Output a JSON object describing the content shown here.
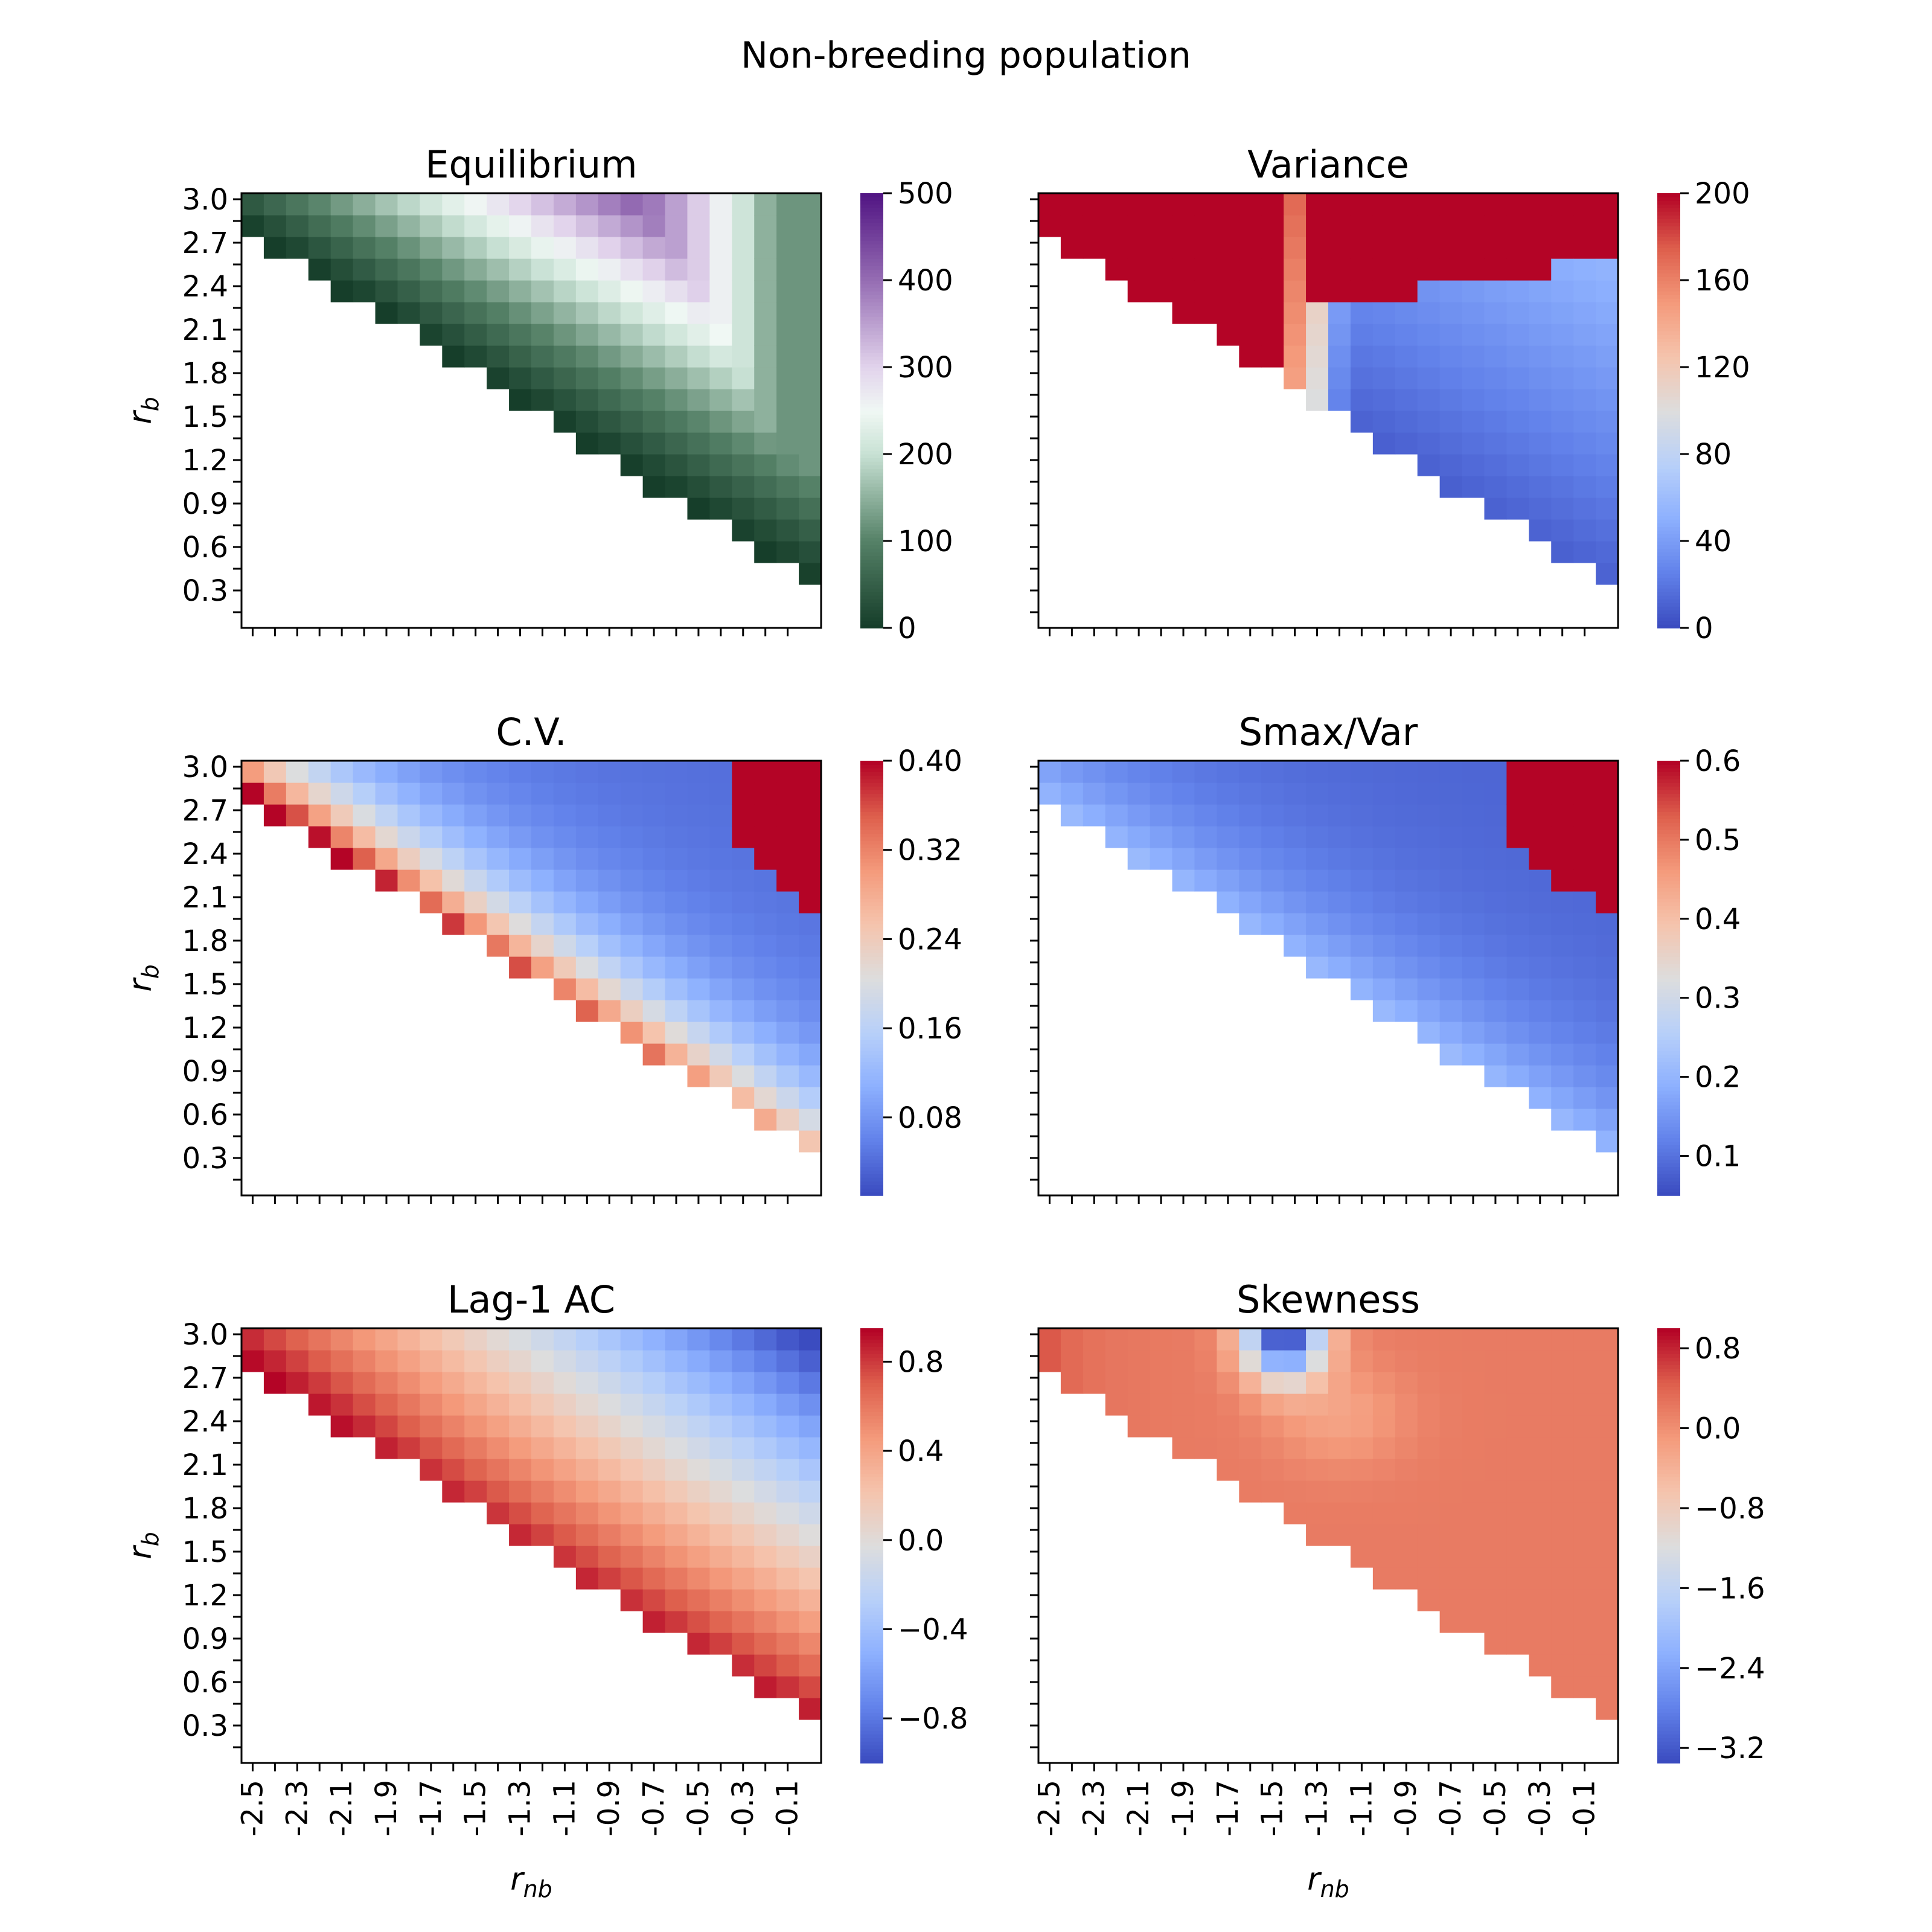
{
  "figure": {
    "title": "Non-breeding population",
    "xlabel_main": "r",
    "xlabel_sub": "nb",
    "ylabel_main": "r",
    "ylabel_sub": "b"
  },
  "chart_data": [
    {
      "type": "heatmap",
      "key": "equilibrium",
      "title": "Equilibrium",
      "colormap": "PRGn",
      "x_tick_labels": [
        "-2.5",
        "-2.3",
        "-2.1",
        "-1.9",
        "-1.7",
        "-1.5",
        "-1.3",
        "-1.1",
        "-0.9",
        "-0.7",
        "-0.5",
        "-0.3",
        "-0.1"
      ],
      "y_tick_labels": [
        "3.0",
        "2.7",
        "2.4",
        "2.1",
        "1.8",
        "1.5",
        "1.2",
        "0.9",
        "0.6",
        "0.3"
      ],
      "colorbar": {
        "vmin": 0,
        "vmax": 500,
        "tick_values": [
          0,
          100,
          200,
          300,
          400,
          500
        ],
        "tick_labels": [
          "0",
          "100",
          "200",
          "300",
          "400",
          "500"
        ]
      },
      "pattern": "Lower-left triangle empty; dark green (≈0) along lower diagonal edge, rising through white (~250) to dark purple (~500) near r_b 2.7–3.0, r_nb -2.3 to -0.7"
    },
    {
      "type": "heatmap",
      "key": "variance",
      "title": "Variance",
      "colormap": "coolwarm",
      "colorbar": {
        "vmin": 0,
        "vmax": 200,
        "tick_values": [
          0,
          40,
          80,
          120,
          160,
          200
        ],
        "tick_labels": [
          "0",
          "40",
          "80",
          "120",
          "160",
          "200"
        ]
      },
      "pattern": "Saturated red (≥200) in upper-left and upper-right regions separated by a blue/white band near r_nb ≈ -1.4; lower triangle mostly dark blue (low variance)"
    },
    {
      "type": "heatmap",
      "key": "cv",
      "title": "C.V.",
      "colormap": "coolwarm",
      "colorbar": {
        "vmin": 0.01,
        "vmax": 0.4,
        "tick_values": [
          0.08,
          0.16,
          0.24,
          0.32,
          0.4
        ],
        "tick_labels": [
          "0.08",
          "0.16",
          "0.24",
          "0.32",
          "0.40"
        ]
      },
      "pattern": "Red along the lower-left diagonal edge and in the top-right corner; blue elsewhere with minimum near the center"
    },
    {
      "type": "heatmap",
      "key": "smax",
      "title": "Smax/Var",
      "colormap": "coolwarm",
      "colorbar": {
        "vmin": 0.05,
        "vmax": 0.6,
        "tick_values": [
          0.1,
          0.2,
          0.3,
          0.4,
          0.5,
          0.6
        ],
        "tick_labels": [
          "0.1",
          "0.2",
          "0.3",
          "0.4",
          "0.5",
          "0.6"
        ]
      },
      "pattern": "Mostly blue (0.1–0.2), light blue along diagonal edge, red block in the top-right corner"
    },
    {
      "type": "heatmap",
      "key": "lag1",
      "title": "Lag-1 AC",
      "colormap": "coolwarm",
      "colorbar": {
        "vmin": -1.0,
        "vmax": 0.95,
        "tick_values": [
          -0.8,
          -0.4,
          0.0,
          0.4,
          0.8
        ],
        "tick_labels": [
          "−0.8",
          "−0.4",
          "0.0",
          "0.4",
          "0.8"
        ]
      },
      "pattern": "Strong positive (red) along the lower diagonal edge decreasing to strong negative (blue) at the top-right corner"
    },
    {
      "type": "heatmap",
      "key": "skew",
      "title": "Skewness",
      "colormap": "coolwarm",
      "colorbar": {
        "vmin": -3.35,
        "vmax": 1.0,
        "tick_values": [
          -3.2,
          -2.4,
          -1.6,
          -0.8,
          0.0,
          0.8
        ],
        "tick_labels": [
          "−3.2",
          "−2.4",
          "−1.6",
          "−0.8",
          "0.0",
          "0.8"
        ]
      },
      "pattern": "Mostly salmon (~0.1–0.3), red at the far-left edge, blue pocket near r_b 2.7–3.0, r_nb -1.5 to -1.3"
    }
  ]
}
